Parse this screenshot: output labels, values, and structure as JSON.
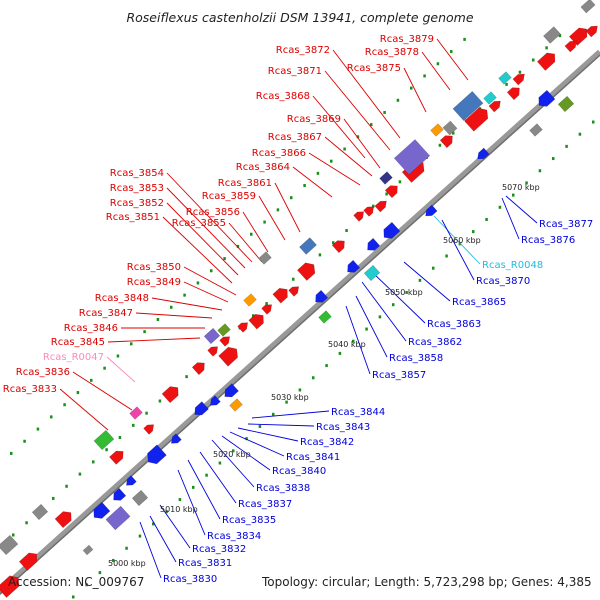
{
  "title": "Roseiflexus castenholzii DSM 13941, complete genome",
  "accession": "Accession: NC_009767",
  "topology": "Topology: circular; Length: 5,723,298 bp; Genes: 4,385",
  "colors": {
    "forward_label": "#dd0000",
    "reverse_label": "#0000dd",
    "rna_forward_label": "#ff88bb",
    "rna_reverse_label": "#22bbdd",
    "backbone": "#999999",
    "tick": "#1a8f1a"
  },
  "kbp_ticks": [
    "5000 kbp",
    "5010 kbp",
    "5020 kbp",
    "5030 kbp",
    "5040 kbp",
    "5050 kbp",
    "5060 kbp",
    "5070 kbp"
  ],
  "upper_labels": [
    "Rcas_3879",
    "Rcas_3878",
    "Rcas_3872",
    "Rcas_3875",
    "Rcas_3871",
    "Rcas_3868",
    "Rcas_3869",
    "Rcas_3867",
    "Rcas_3866",
    "Rcas_3864",
    "Rcas_3854",
    "Rcas_3861",
    "Rcas_3853",
    "Rcas_3859",
    "Rcas_3852",
    "Rcas_3856",
    "Rcas_3851",
    "Rcas_3855",
    "Rcas_3850",
    "Rcas_3849",
    "Rcas_3848",
    "Rcas_3847",
    "Rcas_3846",
    "Rcas_3845",
    "Rcas_R0047",
    "Rcas_3836",
    "Rcas_3833"
  ],
  "lower_labels": [
    "Rcas_3877",
    "Rcas_3876",
    "Rcas_R0048",
    "Rcas_3870",
    "Rcas_3865",
    "Rcas_3863",
    "Rcas_3862",
    "Rcas_3858",
    "Rcas_3857",
    "Rcas_3844",
    "Rcas_3843",
    "Rcas_3842",
    "Rcas_3841",
    "Rcas_3840",
    "Rcas_3838",
    "Rcas_3837",
    "Rcas_3835",
    "Rcas_3834",
    "Rcas_3832",
    "Rcas_3831",
    "Rcas_3830"
  ]
}
